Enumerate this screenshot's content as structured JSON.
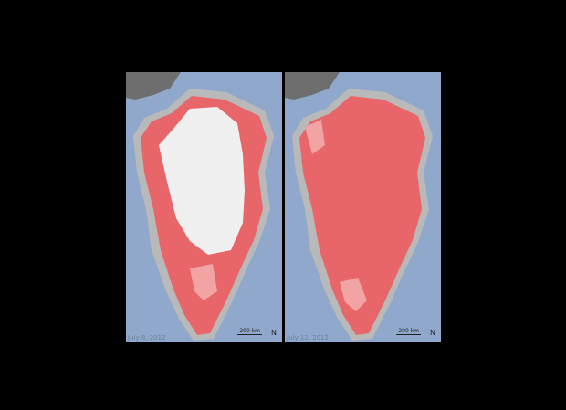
{
  "panels": [
    {
      "date": "July 8, 2012",
      "scale": "200 km",
      "north": "N"
    },
    {
      "date": "July 12, 2012",
      "scale": "200 km",
      "north": "N"
    }
  ],
  "colors": {
    "ocean": "#8fa8cc",
    "land": "#b9b9b9",
    "other_land": "#6e6e6e",
    "melt": "#e8666a",
    "probable_melt": "#f2a3a3",
    "no_melt": "#f0f0f0"
  }
}
